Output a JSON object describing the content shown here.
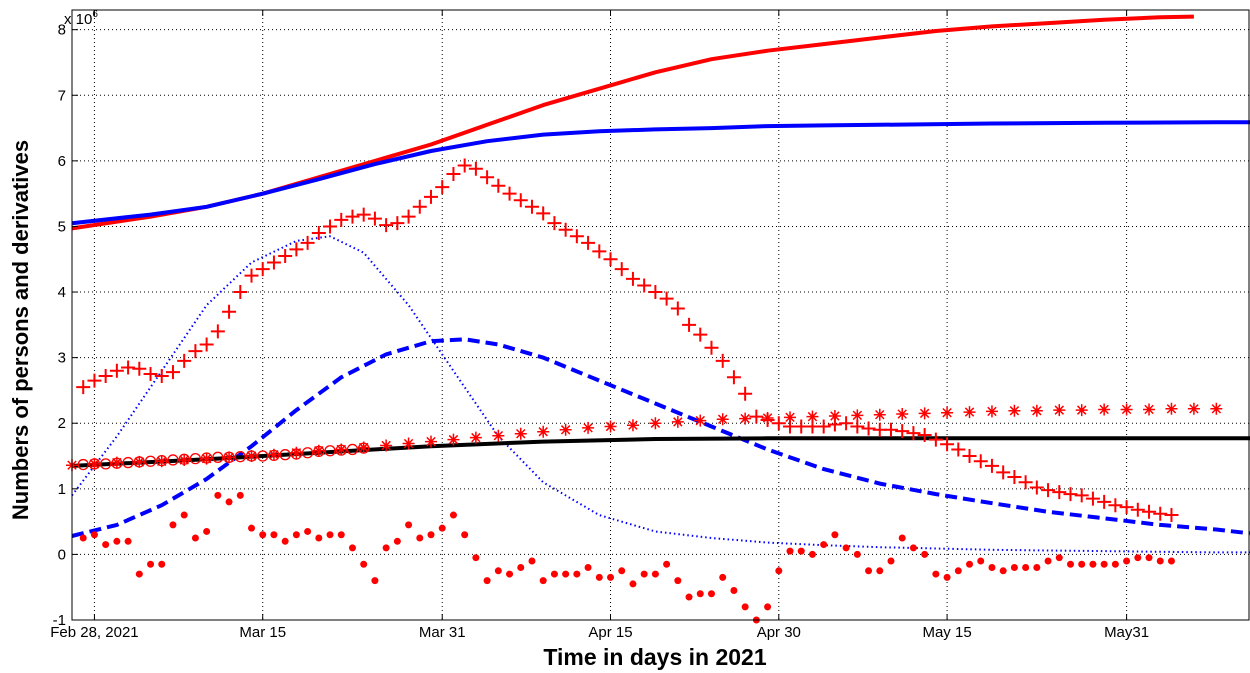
{
  "chart_data": {
    "type": "line",
    "xlabel": "Time in days in 2021",
    "ylabel": "Numbers of persons and derivatives",
    "y_multiplier": "x 10",
    "y_multiplier_exp": "6",
    "xlim": [
      -2,
      103
    ],
    "ylim": [
      -1,
      8.3
    ],
    "grid": true,
    "x_ticks": [
      {
        "x": 0,
        "label": "Feb 28, 2021"
      },
      {
        "x": 15,
        "label": "Mar 15"
      },
      {
        "x": 31,
        "label": "Mar 31"
      },
      {
        "x": 46,
        "label": "Apr 15"
      },
      {
        "x": 61,
        "label": "Apr 30"
      },
      {
        "x": 76,
        "label": "May 15"
      },
      {
        "x": 92,
        "label": "May31"
      }
    ],
    "y_ticks": [
      {
        "y": -1,
        "label": "-1"
      },
      {
        "y": 0,
        "label": "0"
      },
      {
        "y": 1,
        "label": "1"
      },
      {
        "y": 2,
        "label": "2"
      },
      {
        "y": 3,
        "label": "3"
      },
      {
        "y": 4,
        "label": "4"
      },
      {
        "y": 5,
        "label": "5"
      },
      {
        "y": 6,
        "label": "6"
      },
      {
        "y": 7,
        "label": "7"
      },
      {
        "y": 8,
        "label": "8"
      }
    ],
    "series": [
      {
        "style": "solid",
        "color": "#ff0000",
        "width": 4,
        "x": [
          -2,
          5,
          10,
          15,
          20,
          25,
          30,
          35,
          40,
          45,
          50,
          55,
          60,
          65,
          70,
          75,
          80,
          85,
          90,
          95,
          98
        ],
        "y": [
          4.97,
          5.15,
          5.3,
          5.5,
          5.75,
          6.0,
          6.25,
          6.55,
          6.85,
          7.1,
          7.35,
          7.55,
          7.68,
          7.78,
          7.88,
          7.98,
          8.05,
          8.1,
          8.15,
          8.19,
          8.2
        ]
      },
      {
        "style": "solid",
        "color": "#0000ff",
        "width": 4,
        "x": [
          -2,
          5,
          10,
          15,
          20,
          25,
          30,
          35,
          40,
          45,
          50,
          55,
          60,
          65,
          70,
          80,
          90,
          100,
          103
        ],
        "y": [
          5.05,
          5.18,
          5.3,
          5.5,
          5.72,
          5.95,
          6.15,
          6.3,
          6.4,
          6.45,
          6.48,
          6.5,
          6.53,
          6.54,
          6.55,
          6.57,
          6.58,
          6.59,
          6.59
        ]
      },
      {
        "style": "dotted",
        "color": "#0000ff",
        "width": 2,
        "x": [
          -2,
          2,
          6,
          10,
          14,
          18,
          21,
          24,
          28,
          32,
          36,
          40,
          45,
          50,
          55,
          60,
          65,
          70,
          75,
          80,
          85,
          90,
          95,
          100,
          103
        ],
        "y": [
          0.9,
          1.8,
          2.8,
          3.8,
          4.45,
          4.78,
          4.85,
          4.6,
          3.8,
          2.8,
          1.8,
          1.1,
          0.6,
          0.35,
          0.25,
          0.18,
          0.14,
          0.11,
          0.09,
          0.07,
          0.06,
          0.05,
          0.04,
          0.03,
          0.03
        ]
      },
      {
        "style": "dashed",
        "color": "#0000ff",
        "width": 4,
        "x": [
          -2,
          2,
          6,
          10,
          14,
          18,
          22,
          26,
          30,
          33,
          36,
          40,
          45,
          50,
          55,
          60,
          65,
          70,
          75,
          80,
          85,
          90,
          95,
          100,
          103
        ],
        "y": [
          0.28,
          0.45,
          0.75,
          1.15,
          1.65,
          2.2,
          2.7,
          3.05,
          3.25,
          3.28,
          3.2,
          3.0,
          2.65,
          2.3,
          1.95,
          1.6,
          1.3,
          1.08,
          0.92,
          0.78,
          0.65,
          0.55,
          0.45,
          0.38,
          0.32
        ]
      },
      {
        "style": "solid",
        "color": "#000000",
        "width": 4,
        "x": [
          -2,
          10,
          20,
          30,
          40,
          50,
          60,
          70,
          80,
          90,
          103
        ],
        "y": [
          1.35,
          1.45,
          1.55,
          1.65,
          1.72,
          1.76,
          1.77,
          1.77,
          1.77,
          1.77,
          1.77
        ]
      },
      {
        "style": "markers",
        "marker": "circle",
        "color": "#ff0000",
        "size": 5,
        "x": [
          -1,
          0,
          1,
          2,
          3,
          4,
          5,
          6,
          7,
          8,
          9,
          10,
          11,
          12,
          13,
          14,
          15,
          16,
          17,
          18,
          19,
          20,
          21,
          22,
          23,
          24
        ],
        "y": [
          1.37,
          1.38,
          1.38,
          1.39,
          1.4,
          1.41,
          1.42,
          1.43,
          1.44,
          1.45,
          1.46,
          1.47,
          1.48,
          1.48,
          1.49,
          1.5,
          1.5,
          1.51,
          1.52,
          1.53,
          1.55,
          1.57,
          1.58,
          1.59,
          1.6,
          1.62
        ]
      },
      {
        "style": "markers",
        "marker": "asterisk",
        "color": "#ff0000",
        "size": 6,
        "x": [
          -2,
          0,
          2,
          4,
          6,
          8,
          10,
          12,
          14,
          16,
          18,
          20,
          22,
          24,
          26,
          28,
          30,
          32,
          34,
          36,
          38,
          40,
          42,
          44,
          46,
          48,
          50,
          52,
          54,
          56,
          58,
          60,
          62,
          64,
          66,
          68,
          70,
          72,
          74,
          76,
          78,
          80,
          82,
          84,
          86,
          88,
          90,
          92,
          94,
          96,
          98,
          100
        ],
        "y": [
          1.36,
          1.38,
          1.4,
          1.41,
          1.42,
          1.44,
          1.46,
          1.48,
          1.5,
          1.52,
          1.55,
          1.58,
          1.6,
          1.63,
          1.66,
          1.69,
          1.72,
          1.75,
          1.78,
          1.81,
          1.84,
          1.87,
          1.9,
          1.93,
          1.95,
          1.97,
          2.0,
          2.02,
          2.04,
          2.06,
          2.07,
          2.08,
          2.09,
          2.1,
          2.11,
          2.12,
          2.13,
          2.14,
          2.15,
          2.16,
          2.17,
          2.18,
          2.19,
          2.19,
          2.2,
          2.2,
          2.21,
          2.21,
          2.21,
          2.22,
          2.22,
          2.22
        ]
      },
      {
        "style": "markers",
        "marker": "plus",
        "color": "#ff0000",
        "size": 7,
        "x": [
          -1,
          0,
          1,
          2,
          3,
          4,
          5,
          6,
          7,
          8,
          9,
          10,
          11,
          12,
          13,
          14,
          15,
          16,
          17,
          18,
          19,
          20,
          21,
          22,
          23,
          24,
          25,
          26,
          27,
          28,
          29,
          30,
          31,
          32,
          33,
          34,
          35,
          36,
          37,
          38,
          39,
          40,
          41,
          42,
          43,
          44,
          45,
          46,
          47,
          48,
          49,
          50,
          51,
          52,
          53,
          54,
          55,
          56,
          57,
          58,
          59,
          60,
          61,
          62,
          63,
          64,
          65,
          66,
          67,
          68,
          69,
          70,
          71,
          72,
          73,
          74,
          75,
          76,
          77,
          78,
          79,
          80,
          81,
          82,
          83,
          84,
          85,
          86,
          87,
          88,
          89,
          90,
          91,
          92,
          93,
          94,
          95,
          96
        ],
        "y": [
          2.55,
          2.65,
          2.72,
          2.8,
          2.85,
          2.83,
          2.75,
          2.72,
          2.78,
          2.95,
          3.1,
          3.2,
          3.4,
          3.7,
          4.0,
          4.25,
          4.35,
          4.45,
          4.55,
          4.65,
          4.75,
          4.9,
          5.0,
          5.1,
          5.15,
          5.18,
          5.12,
          5.02,
          5.05,
          5.15,
          5.3,
          5.45,
          5.6,
          5.8,
          5.93,
          5.88,
          5.75,
          5.62,
          5.5,
          5.4,
          5.3,
          5.2,
          5.05,
          4.95,
          4.85,
          4.75,
          4.62,
          4.5,
          4.35,
          4.2,
          4.1,
          4.0,
          3.9,
          3.75,
          3.5,
          3.35,
          3.15,
          2.95,
          2.7,
          2.45,
          2.1,
          2.05,
          2.0,
          1.95,
          1.95,
          1.95,
          1.95,
          1.98,
          2.0,
          1.95,
          1.92,
          1.9,
          1.9,
          1.88,
          1.85,
          1.82,
          1.75,
          1.68,
          1.6,
          1.5,
          1.42,
          1.35,
          1.25,
          1.18,
          1.1,
          1.02,
          0.98,
          0.95,
          0.92,
          0.9,
          0.85,
          0.8,
          0.75,
          0.72,
          0.68,
          0.65,
          0.62,
          0.6
        ]
      },
      {
        "style": "markers",
        "marker": "dot",
        "color": "#ff0000",
        "size": 3.5,
        "x": [
          -1,
          0,
          1,
          2,
          3,
          4,
          5,
          6,
          7,
          8,
          9,
          10,
          11,
          12,
          13,
          14,
          15,
          16,
          17,
          18,
          19,
          20,
          21,
          22,
          23,
          24,
          25,
          26,
          27,
          28,
          29,
          30,
          31,
          32,
          33,
          34,
          35,
          36,
          37,
          38,
          39,
          40,
          41,
          42,
          43,
          44,
          45,
          46,
          47,
          48,
          49,
          50,
          51,
          52,
          53,
          54,
          55,
          56,
          57,
          58,
          59,
          60,
          61,
          62,
          63,
          64,
          65,
          66,
          67,
          68,
          69,
          70,
          71,
          72,
          73,
          74,
          75,
          76,
          77,
          78,
          79,
          80,
          81,
          82,
          83,
          84,
          85,
          86,
          87,
          88,
          89,
          90,
          91,
          92,
          93,
          94,
          95,
          96
        ],
        "y": [
          0.25,
          0.3,
          0.15,
          0.2,
          0.2,
          -0.3,
          -0.15,
          -0.15,
          0.45,
          0.6,
          0.25,
          0.35,
          0.9,
          0.8,
          0.9,
          0.4,
          0.3,
          0.3,
          0.2,
          0.3,
          0.35,
          0.25,
          0.3,
          0.3,
          0.1,
          -0.15,
          -0.4,
          0.1,
          0.2,
          0.45,
          0.25,
          0.3,
          0.4,
          0.6,
          0.3,
          -0.05,
          -0.4,
          -0.25,
          -0.3,
          -0.2,
          -0.1,
          -0.4,
          -0.3,
          -0.3,
          -0.3,
          -0.2,
          -0.35,
          -0.35,
          -0.25,
          -0.45,
          -0.3,
          -0.3,
          -0.15,
          -0.4,
          -0.65,
          -0.6,
          -0.6,
          -0.35,
          -0.55,
          -0.8,
          -1.0,
          -0.8,
          -0.25,
          0.05,
          0.05,
          0.0,
          0.15,
          0.3,
          0.1,
          0.0,
          -0.25,
          -0.25,
          -0.1,
          0.25,
          0.1,
          0.0,
          -0.3,
          -0.35,
          -0.25,
          -0.15,
          -0.1,
          -0.2,
          -0.25,
          -0.2,
          -0.2,
          -0.2,
          -0.1,
          -0.05,
          -0.15,
          -0.15,
          -0.15,
          -0.15,
          -0.15,
          -0.1,
          -0.05,
          -0.05,
          -0.1,
          -0.1
        ]
      }
    ]
  }
}
